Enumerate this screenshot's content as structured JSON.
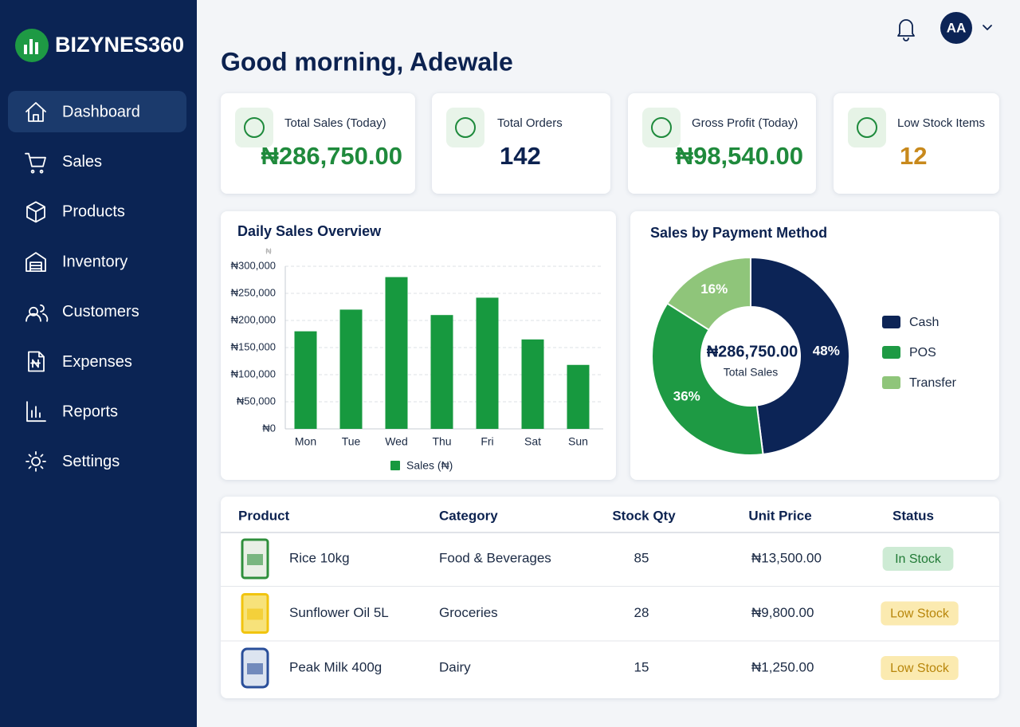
{
  "brand": "BIZYNES360",
  "nav": [
    "Dashboard",
    "Sales",
    "Products",
    "Inventory",
    "Customers",
    "Expenses",
    "Reports",
    "Settings"
  ],
  "greeting": "Good morning, Adewale",
  "avatar": "AA",
  "kpis": [
    {
      "label": "Total Sales (Today)",
      "value": "₦286,750.00",
      "color": "#1f8a3c"
    },
    {
      "label": "Total Orders",
      "value": "142",
      "color": "#0c2250"
    },
    {
      "label": "Gross Profit (Today)",
      "value": "₦98,540.00",
      "color": "#1f8a3c"
    },
    {
      "label": "Low Stock Items",
      "value": "12",
      "color": "#c8891c"
    }
  ],
  "chart_data": [
    {
      "type": "bar",
      "title": "Daily Sales Overview",
      "ylabel": "₦",
      "categories": [
        "Mon",
        "Tue",
        "Wed",
        "Thu",
        "Fri",
        "Sat",
        "Sun"
      ],
      "series": [
        {
          "name": "Sales (₦)",
          "color": "#17993f",
          "values": [
            180000,
            220000,
            280000,
            210000,
            242000,
            165000,
            118000
          ]
        }
      ],
      "ylim": [
        0,
        300000
      ],
      "yticks": [
        {
          "value": 0,
          "label": "₦0"
        },
        {
          "value": 50000,
          "label": "₦50,000"
        },
        {
          "value": 100000,
          "label": "₦100,000"
        },
        {
          "value": 150000,
          "label": "₦150,000"
        },
        {
          "value": 200000,
          "label": "₦200,000"
        },
        {
          "value": 250000,
          "label": "₦250,000"
        },
        {
          "value": 300000,
          "label": "₦300,000"
        }
      ],
      "grid": true
    },
    {
      "type": "pie",
      "title": "Sales by Payment Method",
      "categories": [
        "Cash",
        "POS",
        "Transfer"
      ],
      "values": [
        48,
        36,
        16
      ],
      "value_labels": [
        "48%",
        "36%",
        "16%"
      ],
      "colors": [
        "#0c2456",
        "#1e9a44",
        "#8fc57a"
      ],
      "center_value": "₦286,750.00",
      "center_label": "Total Sales"
    }
  ],
  "table": {
    "columns": [
      "Product",
      "Category",
      "Stock Qty",
      "Unit Price",
      "Status"
    ],
    "rows": [
      [
        "Rice 10kg",
        "Food & Beverages",
        "85",
        "₦13,500.00",
        {
          "label": "In Stock",
          "color": "#217a36",
          "bg": "#cdebd4"
        }
      ],
      [
        "Sunflower Oil 5L",
        "Groceries",
        "28",
        "₦9,800.00",
        {
          "label": "Low Stock",
          "color": "#b8860b",
          "bg": "#fbeab0"
        }
      ],
      [
        "Peak Milk 400g",
        "Dairy",
        "15",
        "₦1,250.00",
        {
          "label": "Low Stock",
          "color": "#b8860b",
          "bg": "#fbeab0"
        }
      ]
    ]
  }
}
